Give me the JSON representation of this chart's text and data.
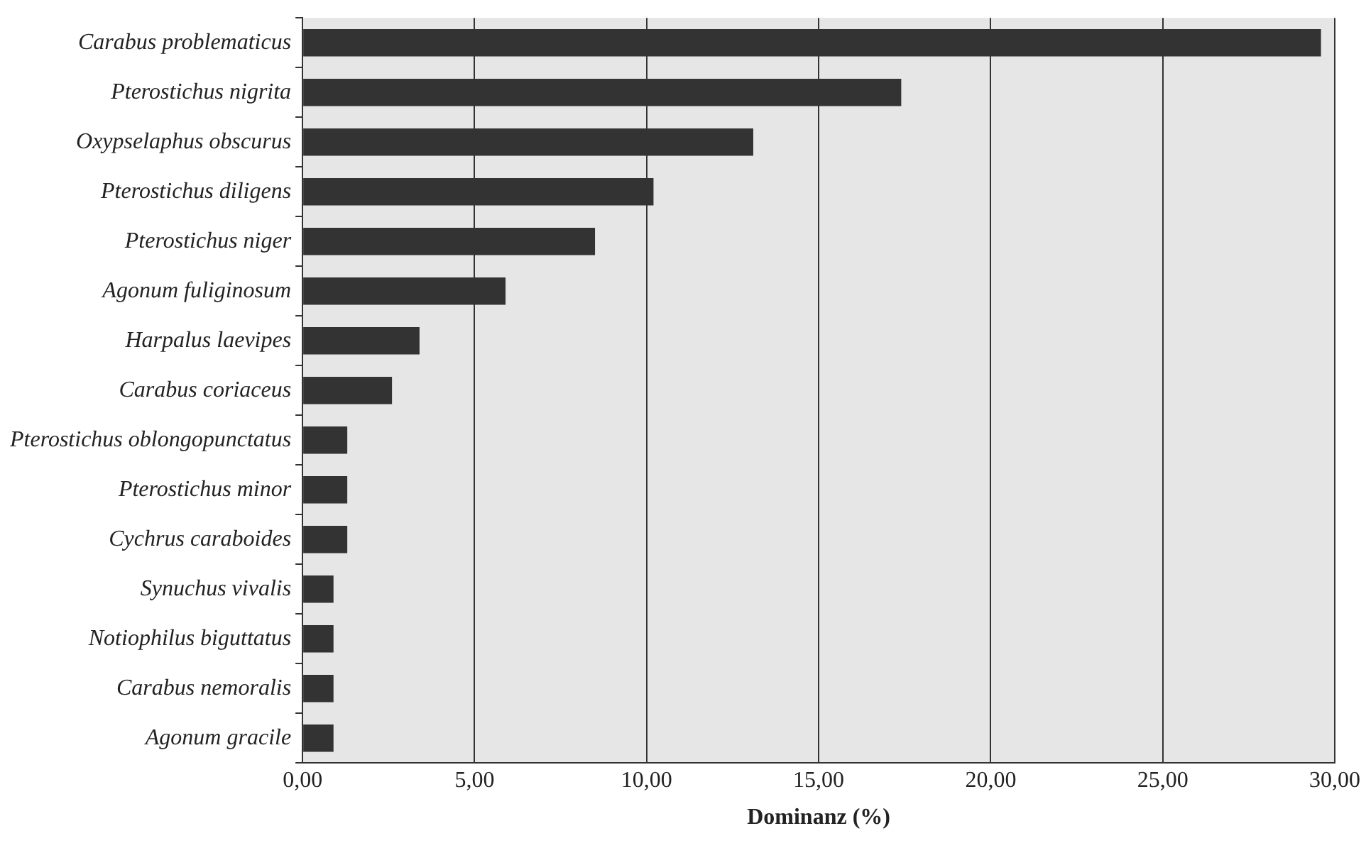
{
  "chart_data": {
    "type": "bar",
    "orientation": "horizontal",
    "xlabel": "Dominanz (%)",
    "categories": [
      "Carabus problematicus",
      "Pterostichus nigrita",
      "Oxypselaphus obscurus",
      "Pterostichus diligens",
      "Pterostichus niger",
      "Agonum fuliginosum",
      "Harpalus laevipes",
      "Carabus coriaceus",
      "Pterostichus oblongopunctatus",
      "Pterostichus minor",
      "Cychrus caraboides",
      "Synuchus vivalis",
      "Notiophilus biguttatus",
      "Carabus nemoralis",
      "Agonum gracile"
    ],
    "values": [
      29.6,
      17.4,
      13.1,
      10.2,
      8.5,
      5.9,
      3.4,
      2.6,
      1.3,
      1.3,
      1.3,
      0.9,
      0.9,
      0.9,
      0.9
    ],
    "color": "#333333",
    "xlim": [
      0,
      30
    ],
    "xticks": [
      {
        "value": 0,
        "label": "0,00"
      },
      {
        "value": 5,
        "label": "5,00"
      },
      {
        "value": 10,
        "label": "10,00"
      },
      {
        "value": 15,
        "label": "15,00"
      },
      {
        "value": 20,
        "label": "20,00"
      },
      {
        "value": 25,
        "label": "25,00"
      },
      {
        "value": 30,
        "label": "30,00"
      }
    ],
    "grid": "x",
    "legend": false
  }
}
